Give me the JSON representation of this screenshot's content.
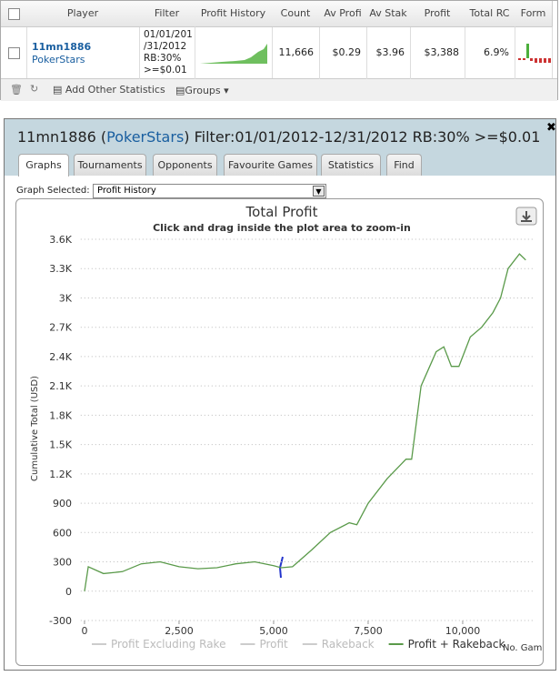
{
  "grid_table": {
    "headers": [
      "Player",
      "Filter",
      "Profit History",
      "Count",
      "Av Profi",
      "Av Stak",
      "Profit",
      "Total RC",
      "Form"
    ],
    "row": {
      "player": "11mn1886",
      "site": "PokerStars",
      "filter_lines": [
        "01/01/201",
        "/31/2012",
        "RB:30%",
        ">=$0.01"
      ],
      "count": "11,666",
      "av_profit": "$0.29",
      "av_stake": "$3.96",
      "profit": "$3,388",
      "total_rc": "6.9%"
    },
    "toolbar": {
      "add": "Add Other Statistics",
      "groups": "Groups"
    }
  },
  "panel": {
    "title_parts": [
      "11mn1886 (",
      "PokerStars",
      ") Filter:01/01/2012-12/31/2012 RB:30% >=$0.01"
    ],
    "tabs": [
      "Graphs",
      "Tournaments",
      "Opponents",
      "Favourite Games",
      "Statistics",
      "Find"
    ],
    "active_tab": 0,
    "graph_label": "Graph Selected:",
    "graph_value": "Profit History"
  },
  "chart_data": {
    "type": "line",
    "title": "Total Profit",
    "subtitle": "Click and drag inside the plot area to zoom-in",
    "x_label": "No. Games",
    "y_label": "Cumulative Total (USD)",
    "x": [
      0,
      100,
      500,
      1000,
      1500,
      2000,
      2500,
      3000,
      3500,
      4000,
      4500,
      5000,
      5200,
      5500,
      6000,
      6500,
      7000,
      7200,
      7500,
      8000,
      8500,
      8650,
      8900,
      9300,
      9500,
      9700,
      9900,
      10200,
      10500,
      10800,
      11000,
      11200,
      11500,
      11666
    ],
    "series": [
      {
        "name": "Profit Excluding Rake",
        "color": "#cccccc",
        "visible": false
      },
      {
        "name": "Profit",
        "color": "#cccccc",
        "visible": false
      },
      {
        "name": "Rakeback",
        "color": "#cccccc",
        "visible": false
      },
      {
        "name": "Profit + Rakeback",
        "color": "#5a9a4a",
        "visible": true,
        "values": [
          0,
          250,
          180,
          200,
          280,
          300,
          250,
          230,
          240,
          280,
          300,
          260,
          240,
          250,
          420,
          600,
          700,
          680,
          900,
          1150,
          1350,
          1350,
          2100,
          2450,
          2500,
          2300,
          2300,
          2600,
          2700,
          2850,
          3000,
          3300,
          3450,
          3388
        ]
      }
    ],
    "xlim": [
      -100,
      11900
    ],
    "ylim": [
      -300,
      3600
    ],
    "xticks": [
      0,
      {
        "value": 2500,
        "label": "2,500"
      },
      {
        "value": 5000,
        "label": "5,000"
      },
      {
        "value": 7500,
        "label": "7,500"
      },
      {
        "value": 10000,
        "label": "10,000"
      }
    ],
    "yticks": [
      -300,
      0,
      300,
      600,
      900,
      {
        "value": 1200,
        "label": "1.2K"
      },
      {
        "value": 1500,
        "label": "1.5K"
      },
      {
        "value": 1800,
        "label": "1.8K"
      },
      {
        "value": 2100,
        "label": "2.1K"
      },
      {
        "value": 2400,
        "label": "2.4K"
      },
      {
        "value": 2700,
        "label": "2.7K"
      },
      {
        "value": 3000,
        "label": "3K"
      },
      {
        "value": 3300,
        "label": "3.3K"
      },
      {
        "value": 3600,
        "label": "3.6K"
      }
    ],
    "grid": true
  }
}
